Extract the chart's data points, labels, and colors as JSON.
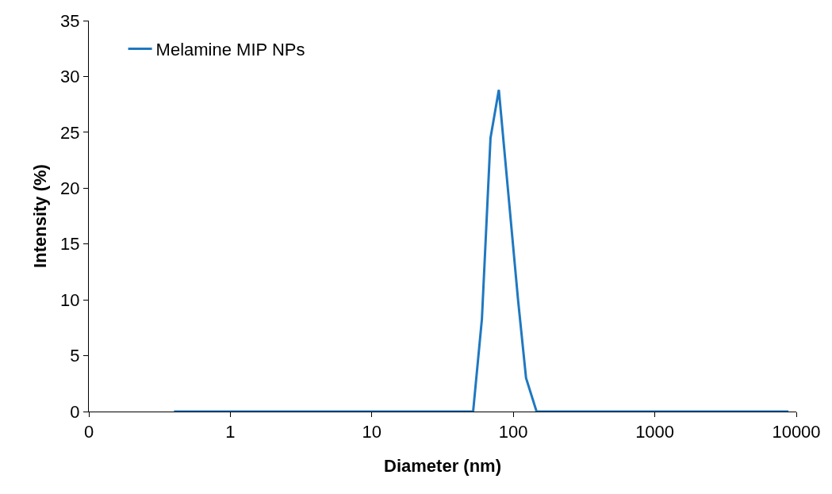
{
  "chart_data": {
    "type": "line",
    "xlabel": "Diameter (nm)",
    "ylabel": "Intensity (%)",
    "log": "x",
    "xlim": [
      0.1,
      10000
    ],
    "xticks": [
      {
        "value": 0.1,
        "label": "0"
      },
      1,
      10,
      100,
      1000,
      10000
    ],
    "ylim": [
      0,
      35
    ],
    "yticks": [
      0,
      5,
      10,
      15,
      20,
      25,
      30,
      35
    ],
    "grid": false,
    "legend": "top left",
    "marker": "none",
    "line_style": "solid",
    "series": [
      {
        "name": "Melamine MIP NPs",
        "color": "#1f78c1",
        "x": [
          0.4,
          1,
          10,
          52,
          60,
          69,
          79,
          108,
          123,
          146,
          1000,
          8800
        ],
        "values": [
          0,
          0,
          0,
          0,
          8.3,
          24.5,
          28.8,
          10,
          3,
          0,
          0,
          0
        ]
      }
    ]
  }
}
